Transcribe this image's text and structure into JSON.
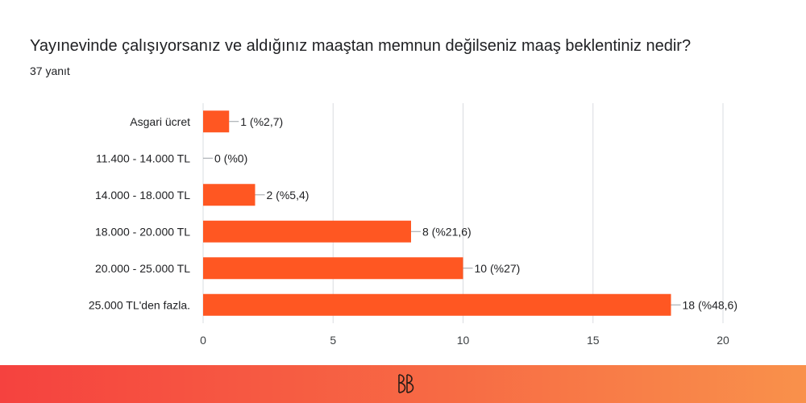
{
  "header": {
    "question": "Yayınevinde çalışıyorsanız ve aldığınız maaştan memnun değilseniz maaş beklentiniz nedir?",
    "responses": "37 yanıt"
  },
  "chart_data": {
    "type": "bar",
    "orientation": "horizontal",
    "title": "Yayınevinde çalışıyorsanız ve aldığınız maaştan memnun değilseniz maaş beklentiniz nedir?",
    "subtitle": "37 yanıt",
    "categories": [
      "Asgari ücret",
      "11.400 - 14.000 TL",
      "14.000 - 18.000 TL",
      "18.000 - 20.000 TL",
      "20.000 - 25.000 TL",
      "25.000 TL'den fazla."
    ],
    "values": [
      1,
      0,
      2,
      8,
      10,
      18
    ],
    "data_labels": [
      "1 (%2,7)",
      "0 (%0)",
      "2 (%5,4)",
      "8 (%21,6)",
      "10 (%27)",
      "18 (%48,6)"
    ],
    "xlim": [
      0,
      20
    ],
    "xticks": [
      0,
      5,
      10,
      15,
      20
    ],
    "grid": true,
    "bar_color": "#ff5722"
  },
  "footer": {
    "color_start": "#f5423f",
    "color_end": "#f9914b",
    "logo_icon": "bb-monogram-icon"
  }
}
